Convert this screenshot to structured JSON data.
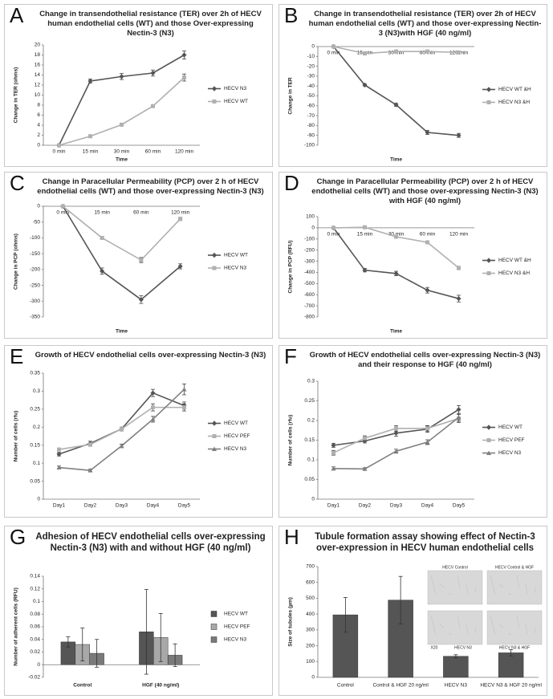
{
  "chart_data": [
    {
      "type": "line",
      "label": "A",
      "title": "Change in transendothelial  resistance (TER) over 2h of HECV human endothelial cells (WT) and those Over-expressing Nectin-3 (N3)",
      "ylabel": "Change in TER (ohms)",
      "xlabel": "Time",
      "categories": [
        "0 min",
        "15 min",
        "30 min",
        "60 min",
        "120 min"
      ],
      "series": [
        {
          "name": "HECV N3",
          "color": "#555555",
          "marker": "diamond",
          "values": [
            0,
            12.8,
            13.7,
            14.4,
            18
          ],
          "errors": [
            0.3,
            0.4,
            0.6,
            0.6,
            0.8
          ]
        },
        {
          "name": "HECV WT",
          "color": "#b0b0b0",
          "marker": "square",
          "values": [
            0,
            1.8,
            4.1,
            7.8,
            13.5
          ],
          "errors": [
            0.2,
            0.2,
            0.2,
            0.2,
            0.7
          ]
        }
      ],
      "ylim": [
        0,
        20
      ],
      "yticks": [
        0,
        2,
        4,
        6,
        8,
        10,
        12,
        14,
        16,
        18,
        20
      ],
      "legend": "right"
    },
    {
      "type": "line",
      "label": "B",
      "title": "Change in transendothelial  resistance (TER) over 2h of HECV human endothelial cells (WT) and those over-expressing Nectin-3 (N3)with HGF (40 ng/ml)",
      "ylabel": "Change in TER",
      "xlabel": "Time",
      "categories": [
        "0 min",
        "15 min",
        "30 min",
        "60 min",
        "120 min"
      ],
      "series": [
        {
          "name": "HECV WT &H",
          "color": "#555555",
          "marker": "diamond",
          "values": [
            0,
            -39,
            -59,
            -87,
            -90
          ],
          "errors": [
            0,
            1,
            1.5,
            2,
            2
          ]
        },
        {
          "name": "HECV N3 &H",
          "color": "#b0b0b0",
          "marker": "square",
          "values": [
            0,
            -7,
            -5,
            -5,
            -6
          ],
          "errors": [
            0,
            1,
            1,
            1,
            1
          ]
        }
      ],
      "ylim": [
        -100,
        0
      ],
      "yticks": [
        0,
        -10,
        -20,
        -30,
        -40,
        -50,
        -60,
        -70,
        -80,
        -90,
        -100
      ],
      "legend": "right"
    },
    {
      "type": "line",
      "label": "C",
      "title": "Change in Paracellular Permeability (PCP) over 2 h of HECV endothelial cells (WT) and those over-expressing Nectin-3 (N3)",
      "ylabel": "Change in PCP (ohms)",
      "xlabel": "Time",
      "categories": [
        "0 min",
        "15 min",
        "60 min",
        "120 min"
      ],
      "series": [
        {
          "name": "HECV WT",
          "color": "#555555",
          "marker": "diamond",
          "values": [
            0,
            -205,
            -295,
            -190
          ],
          "errors": [
            0,
            10,
            12,
            8
          ]
        },
        {
          "name": "HECV N3",
          "color": "#b0b0b0",
          "marker": "square",
          "values": [
            0,
            -100,
            -170,
            -40
          ],
          "errors": [
            0,
            4,
            8,
            5
          ]
        }
      ],
      "ylim": [
        -350,
        0
      ],
      "yticks": [
        0,
        -50,
        -100,
        -150,
        -200,
        -250,
        -300,
        -350
      ],
      "legend": "right"
    },
    {
      "type": "line",
      "label": "D",
      "title": "Change in Paracellular Permeability (PCP) over 2 h of HECV endothelial cells (WT) and those over-expressing Nectin-3 (N3) with HGF (40 ng/ml)",
      "ylabel": "Change in PCP (RFU)",
      "xlabel": "Time",
      "categories": [
        "0 min",
        "15 min",
        "30 min",
        "60 min",
        "120 min"
      ],
      "series": [
        {
          "name": "HECV WT &H",
          "color": "#555555",
          "marker": "diamond",
          "values": [
            0,
            -380,
            -410,
            -560,
            -635
          ],
          "errors": [
            0,
            15,
            20,
            25,
            30
          ]
        },
        {
          "name": "HECV N3 &H",
          "color": "#b0b0b0",
          "marker": "square",
          "values": [
            0,
            5,
            -80,
            -130,
            -360
          ],
          "errors": [
            0,
            5,
            8,
            10,
            15
          ]
        }
      ],
      "ylim": [
        -800,
        100
      ],
      "yticks": [
        100,
        0,
        -100,
        -200,
        -300,
        -400,
        -500,
        -600,
        -700,
        -800
      ],
      "legend": "right"
    },
    {
      "type": "line",
      "label": "E",
      "title": "Growth of HECV endothelial cells over-expressing Nectin-3 (N3)",
      "ylabel": "Number of cells (rfu)",
      "categories": [
        "Day1",
        "Day2",
        "Day3",
        "Day4",
        "Day5"
      ],
      "series": [
        {
          "name": "HECV WT",
          "color": "#555555",
          "marker": "diamond",
          "values": [
            0.125,
            0.155,
            0.195,
            0.295,
            0.26
          ],
          "errors": [
            0.005,
            0.006,
            0.005,
            0.01,
            0.01
          ]
        },
        {
          "name": "HECV PEF",
          "color": "#b0b0b0",
          "marker": "square",
          "values": [
            0.138,
            0.152,
            0.195,
            0.255,
            0.255
          ],
          "errors": [
            0.004,
            0.005,
            0.005,
            0.01,
            0.01
          ]
        },
        {
          "name": "HECV N3",
          "color": "#808080",
          "marker": "triangle",
          "values": [
            0.088,
            0.08,
            0.148,
            0.222,
            0.305
          ],
          "errors": [
            0.004,
            0.003,
            0.005,
            0.008,
            0.015
          ]
        }
      ],
      "ylim": [
        0,
        0.35
      ],
      "yticks": [
        0,
        0.05,
        0.1,
        0.15,
        0.2,
        0.25,
        0.3,
        0.35
      ],
      "legend": "right"
    },
    {
      "type": "line",
      "label": "F",
      "title": "Growth of HECV endothelial cells over-expressing Nectin-3 (N3) and their response to HGF (40 ng/ml)",
      "ylabel": "Number of cells (rfu)",
      "categories": [
        "Day1",
        "Day2",
        "Day3",
        "Day4",
        "Day5"
      ],
      "series": [
        {
          "name": "HECV WT",
          "color": "#555555",
          "marker": "diamond",
          "values": [
            0.137,
            0.148,
            0.168,
            0.178,
            0.228
          ],
          "errors": [
            0.005,
            0.005,
            0.008,
            0.008,
            0.01
          ]
        },
        {
          "name": "HECV PEF",
          "color": "#b0b0b0",
          "marker": "square",
          "values": [
            0.118,
            0.155,
            0.18,
            0.18,
            0.205
          ],
          "errors": [
            0.006,
            0.006,
            0.007,
            0.007,
            0.01
          ]
        },
        {
          "name": "HECV N3",
          "color": "#808080",
          "marker": "triangle",
          "values": [
            0.078,
            0.077,
            0.122,
            0.145,
            0.208
          ],
          "errors": [
            0.004,
            0.003,
            0.005,
            0.006,
            0.01
          ]
        }
      ],
      "ylim": [
        0,
        0.3
      ],
      "yticks": [
        0,
        0.05,
        0.1,
        0.15,
        0.2,
        0.25,
        0.3
      ],
      "legend": "right"
    },
    {
      "type": "bar",
      "label": "G",
      "title": "Adhesion of HECV endothelial cells over-expressing Nectin-3 (N3) with and without HGF (40 ng/ml)",
      "ylabel": "Number of adherent cells (RFU)",
      "categories": [
        "Control",
        "HGF (40 ng/ml)"
      ],
      "series": [
        {
          "name": "HECV WT",
          "color": "#555555",
          "values": [
            0.036,
            0.052
          ],
          "errors": [
            0.008,
            0.067
          ]
        },
        {
          "name": "HECV PEF",
          "color": "#a8a8a8",
          "values": [
            0.032,
            0.043
          ],
          "errors": [
            0.026,
            0.038
          ]
        },
        {
          "name": "HECV N3",
          "color": "#7a7a7a",
          "values": [
            0.018,
            0.015
          ],
          "errors": [
            0.022,
            0.018
          ]
        }
      ],
      "ylim": [
        -0.02,
        0.14
      ],
      "yticks": [
        -0.02,
        0,
        0.02,
        0.04,
        0.06,
        0.08,
        0.1,
        0.12,
        0.14
      ],
      "legend": "right"
    },
    {
      "type": "bar",
      "label": "H",
      "title": "Tubule formation assay showing effect of Nectin-3 over-expression in HECV human endothelial cells",
      "ylabel": "Size of tubules (µm)",
      "categories": [
        "Control",
        "Control & HGF 20 ng/ml",
        "HECV N3",
        "HECV N3 & HGF 20 ng/ml"
      ],
      "series": [
        {
          "color": "#555555",
          "values": [
            395,
            488,
            133,
            155
          ],
          "errors": [
            110,
            150,
            10,
            20
          ]
        }
      ],
      "ylim": [
        0,
        700
      ],
      "yticks": [
        0,
        100,
        200,
        300,
        400,
        500,
        600,
        700
      ],
      "annotations": [
        "HECV Control",
        "HECV Control & HGF",
        "X20",
        "HECV N3",
        "HECV N3 & HGF"
      ]
    }
  ]
}
